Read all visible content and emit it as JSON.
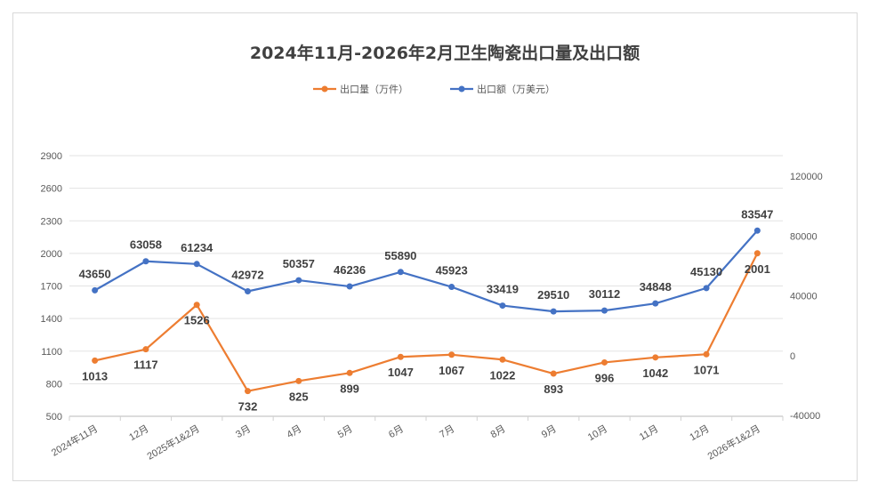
{
  "chart_data": {
    "type": "line",
    "title": "2024年11月-2026年2月卫生陶瓷出口量及出口额",
    "categories": [
      "2024年11月",
      "12月",
      "2025年1&2月",
      "3月",
      "4月",
      "5月",
      "6月",
      "7月",
      "8月",
      "9月",
      "10月",
      "11月",
      "12月",
      "2026年1&2月"
    ],
    "series": [
      {
        "name": "出口量（万件）",
        "axis": "left",
        "color": "#ED7D31",
        "values": [
          1013,
          1117,
          1526,
          732,
          825,
          899,
          1047,
          1067,
          1022,
          893,
          996,
          1042,
          1071,
          2001
        ]
      },
      {
        "name": "出口额（万美元）",
        "axis": "right",
        "color": "#4472C4",
        "values": [
          43650,
          63058,
          61234,
          42972,
          50357,
          46236,
          55890,
          45923,
          33419,
          29510,
          30112,
          34848,
          45130,
          83547
        ]
      }
    ],
    "left_axis": {
      "ylim": [
        500,
        2900
      ],
      "ticks": [
        500,
        800,
        1100,
        1400,
        1700,
        2000,
        2300,
        2600,
        2900
      ]
    },
    "right_axis": {
      "ylim": [
        -40000,
        120000
      ],
      "ticks": [
        -40000,
        0,
        40000,
        80000,
        120000
      ]
    },
    "grid": true,
    "legend": "top"
  }
}
